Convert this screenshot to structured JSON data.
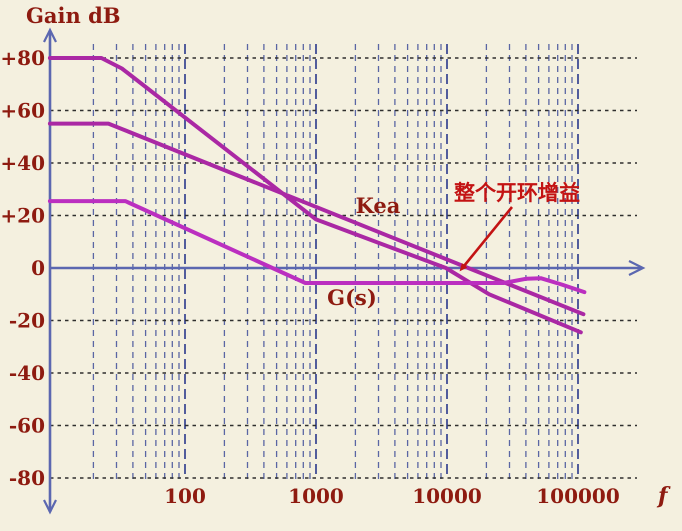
{
  "title": "Gain dB",
  "freq_axis_label": "f",
  "labels": {
    "kea": "Kea",
    "gs": "G(s)"
  },
  "annotation": {
    "text": "整个开环增益"
  },
  "colors": {
    "background": "#f4f0df",
    "axis": "#5b67b0",
    "grid_vertical_minor": "#5a66a4",
    "grid_vertical_major": "#404d94",
    "grid_horizontal": "#2e2e2e",
    "curve_main": "#aa28a4",
    "curve_gs": "#bb2fc0",
    "label_text": "#8e1b10",
    "annotation_red": "#c31313"
  },
  "chart_data": {
    "type": "line",
    "x_scale": "log",
    "title": "Gain dB",
    "xlabel": "f",
    "ylabel": "Gain dB",
    "x_range": [
      10,
      100000
    ],
    "y_range": [
      -80,
      80
    ],
    "grid": true,
    "x_ticks": [
      {
        "label": "100",
        "value": 100
      },
      {
        "label": "1000",
        "value": 1000
      },
      {
        "label": "10000",
        "value": 10000
      },
      {
        "label": "100000",
        "value": 100000
      }
    ],
    "y_ticks": [
      {
        "label": "+80",
        "value": 80
      },
      {
        "label": "+60",
        "value": 60
      },
      {
        "label": "+40",
        "value": 40
      },
      {
        "label": "+20",
        "value": 20
      },
      {
        "label": "0",
        "value": 0
      },
      {
        "label": "-20",
        "value": -20
      },
      {
        "label": "-40",
        "value": -40
      },
      {
        "label": "-60",
        "value": -60
      },
      {
        "label": "-80",
        "value": -80
      }
    ],
    "y_gridlines": [
      80,
      60,
      40,
      20,
      -20,
      -40,
      -60,
      -80
    ],
    "x_gridlines_minor": [
      20,
      30,
      40,
      50,
      60,
      70,
      80,
      90,
      200,
      300,
      400,
      500,
      600,
      700,
      800,
      900,
      2000,
      3000,
      4000,
      5000,
      6000,
      7000,
      8000,
      9000,
      20000,
      30000,
      40000,
      50000,
      60000,
      70000,
      80000,
      90000
    ],
    "x_gridlines_major": [
      100,
      1000,
      10000,
      100000
    ],
    "series": [
      {
        "name": "整个开环增益 (overall open-loop gain)",
        "color": "#aa28a4",
        "points": [
          [
            9.3,
            80
          ],
          [
            23,
            80
          ],
          [
            33,
            76
          ],
          [
            1000,
            18.5
          ],
          [
            9800,
            0
          ],
          [
            21000,
            -10
          ],
          [
            105000,
            -24.5
          ]
        ]
      },
      {
        "name": "Kea",
        "color": "#aa28a4",
        "points": [
          [
            9.3,
            55
          ],
          [
            26,
            55
          ],
          [
            110000,
            -17.6
          ]
        ]
      },
      {
        "name": "G(s)",
        "color": "#bb2fc0",
        "points": [
          [
            9.3,
            25.5
          ],
          [
            35,
            25.5
          ],
          [
            830,
            -5.7
          ],
          [
            27000,
            -5.7
          ],
          [
            40000,
            -4.1
          ],
          [
            52000,
            -3.9
          ],
          [
            75000,
            -6.3
          ],
          [
            112000,
            -9.2
          ]
        ]
      }
    ],
    "annotation": {
      "text": "整个开环增益",
      "points_to": {
        "freq": 12000,
        "db": 0
      }
    }
  }
}
